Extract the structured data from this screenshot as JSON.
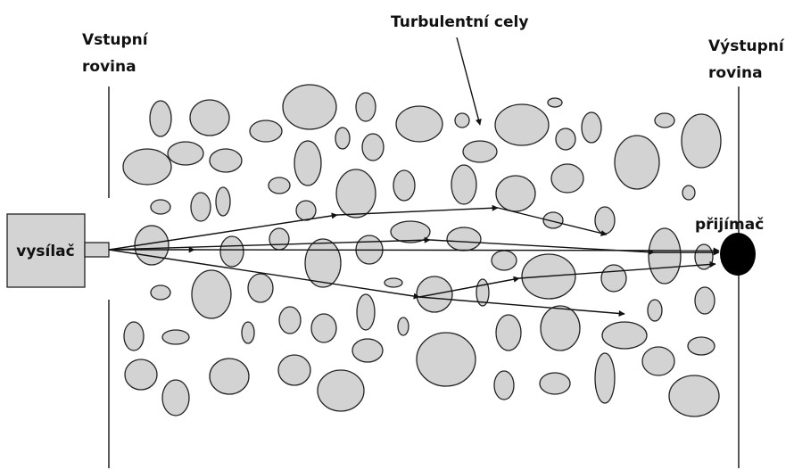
{
  "entry_plane": [
    "Vstupní",
    "rovina"
  ],
  "title_label": "Turbulentní cely",
  "exit_plane": [
    "Výstupní",
    "rovina"
  ],
  "transmitter": "vysílač",
  "receiver": "přijímač"
}
